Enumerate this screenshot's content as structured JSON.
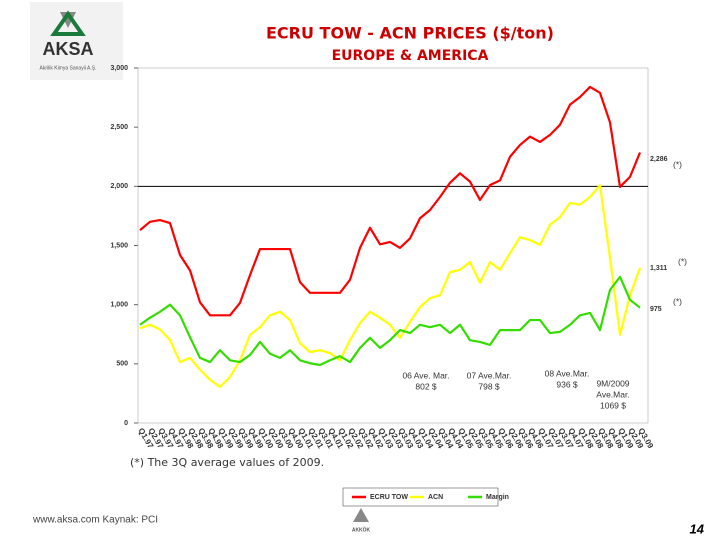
{
  "chart_data": {
    "type": "line",
    "title": "ECRU TOW - ACN PRICES ($/ton)",
    "subtitle": "EUROPE & AMERICA",
    "logo": {
      "name": "AKSA",
      "caption": "Akrilik Kimya Sanayii A.Ş."
    },
    "categories": [
      "Q1.97",
      "Q2.97",
      "Q3.97",
      "Q4.97",
      "Q1.98",
      "Q2.98",
      "Q3.98",
      "Q4.98",
      "Q1.99",
      "Q2.99",
      "Q3.99",
      "Q4.99",
      "Q1.00",
      "Q2.00",
      "Q3.00",
      "Q4.00",
      "Q1.01",
      "Q2.01",
      "Q3.01",
      "Q4.01",
      "Q1.02",
      "Q2.02",
      "Q3.02",
      "Q4.02",
      "Q1.03",
      "Q2.03",
      "Q3.03",
      "Q4.03",
      "Q1.04",
      "Q2.04",
      "Q3.04",
      "Q4.04",
      "Q1.05",
      "Q2.05",
      "Q3.05",
      "Q4.05",
      "Q1.06",
      "Q2.06",
      "Q3.06",
      "Q4.06",
      "Q1.07",
      "Q2.07",
      "Q3.07",
      "Q4.07",
      "Q1.08",
      "Q2.08",
      "Q3.08",
      "Q4.08",
      "Q1.09",
      "Q2.09",
      "Q3.09"
    ],
    "series": [
      {
        "name": "ECRU TOW",
        "color": "#ff0000",
        "end_label": "2,286",
        "values": [
          1630,
          1700,
          1715,
          1690,
          1420,
          1290,
          1020,
          910,
          910,
          910,
          1015,
          1250,
          1470,
          1470,
          1470,
          1470,
          1190,
          1100,
          1100,
          1100,
          1100,
          1210,
          1480,
          1650,
          1510,
          1530,
          1480,
          1560,
          1730,
          1800,
          1910,
          2030,
          2110,
          2040,
          1885,
          2010,
          2050,
          2250,
          2350,
          2420,
          2375,
          2435,
          2520,
          2690,
          2755,
          2840,
          2790,
          2540,
          1995,
          2080,
          2286
        ]
      },
      {
        "name": "ACN",
        "color": "#ffff00",
        "end_label": "1,311",
        "values": [
          800,
          830,
          790,
          700,
          515,
          550,
          450,
          365,
          305,
          390,
          530,
          745,
          810,
          910,
          940,
          870,
          675,
          600,
          615,
          590,
          530,
          700,
          845,
          940,
          890,
          830,
          720,
          855,
          980,
          1055,
          1080,
          1275,
          1295,
          1360,
          1185,
          1360,
          1295,
          1435,
          1570,
          1545,
          1505,
          1675,
          1740,
          1860,
          1845,
          1910,
          2010,
          1395,
          745,
          1080,
          1311
        ]
      },
      {
        "name": "Margin",
        "color": "#33dd00",
        "end_label": "975",
        "values": [
          830,
          890,
          940,
          1000,
          910,
          725,
          550,
          515,
          615,
          530,
          515,
          575,
          685,
          585,
          550,
          615,
          530,
          505,
          490,
          530,
          565,
          515,
          635,
          720,
          635,
          700,
          785,
          760,
          830,
          810,
          830,
          760,
          830,
          700,
          685,
          660,
          785,
          785,
          785,
          870,
          870,
          760,
          770,
          830,
          910,
          930,
          785,
          1125,
          1235,
          1040,
          975
        ]
      }
    ],
    "end_note": "(*)",
    "ylim": [
      0,
      3000
    ],
    "yticks": [
      0,
      500,
      {
        "value": 1000,
        "label": "1,000"
      },
      {
        "value": 1500,
        "label": "1,500"
      },
      {
        "value": 2000,
        "label": "2,000"
      },
      {
        "value": 2500,
        "label": "2,500"
      },
      {
        "value": 3000,
        "label": "3,000"
      }
    ],
    "annotations": [
      [
        "06 Ave. Mar.",
        "802 $"
      ],
      [
        "07 Ave.Mar.",
        "798 $"
      ],
      [
        "08  Ave.Mar.",
        "936 $"
      ],
      [
        "9M/2009",
        "Ave.Mar.",
        "1069 $"
      ]
    ],
    "footnote": "(*) The 3Q average values of 2009.",
    "source": "www.aksa.com Kaynak: PCI",
    "footer_logo": "AKKÖK",
    "page_number": "14"
  }
}
